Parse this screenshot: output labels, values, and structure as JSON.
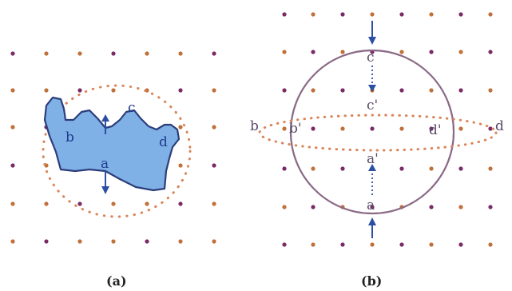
{
  "panel_a": {
    "caption": "(a)",
    "labels": {
      "a": "a",
      "b": "b",
      "c": "c",
      "d": "d"
    },
    "shape_color": "#7fb0e6",
    "outline_color": "#2c3e7a",
    "dotted_ring_color": "#d9855a"
  },
  "panel_b": {
    "caption": "(b)",
    "labels": {
      "a": "a",
      "a_prime": "a'",
      "b": "b",
      "b_prime": "b'",
      "c": "c",
      "c_prime": "c'",
      "d": "d",
      "d_prime": "d'"
    },
    "circle_color": "#8a6a86",
    "ellipse_color": "#d9855a"
  },
  "colors": {
    "dot_warm": "#c0703a",
    "dot_purple": "#7a2a66",
    "arrow_blue": "#2b4fa3",
    "label_blue": "#1e3c8c"
  }
}
